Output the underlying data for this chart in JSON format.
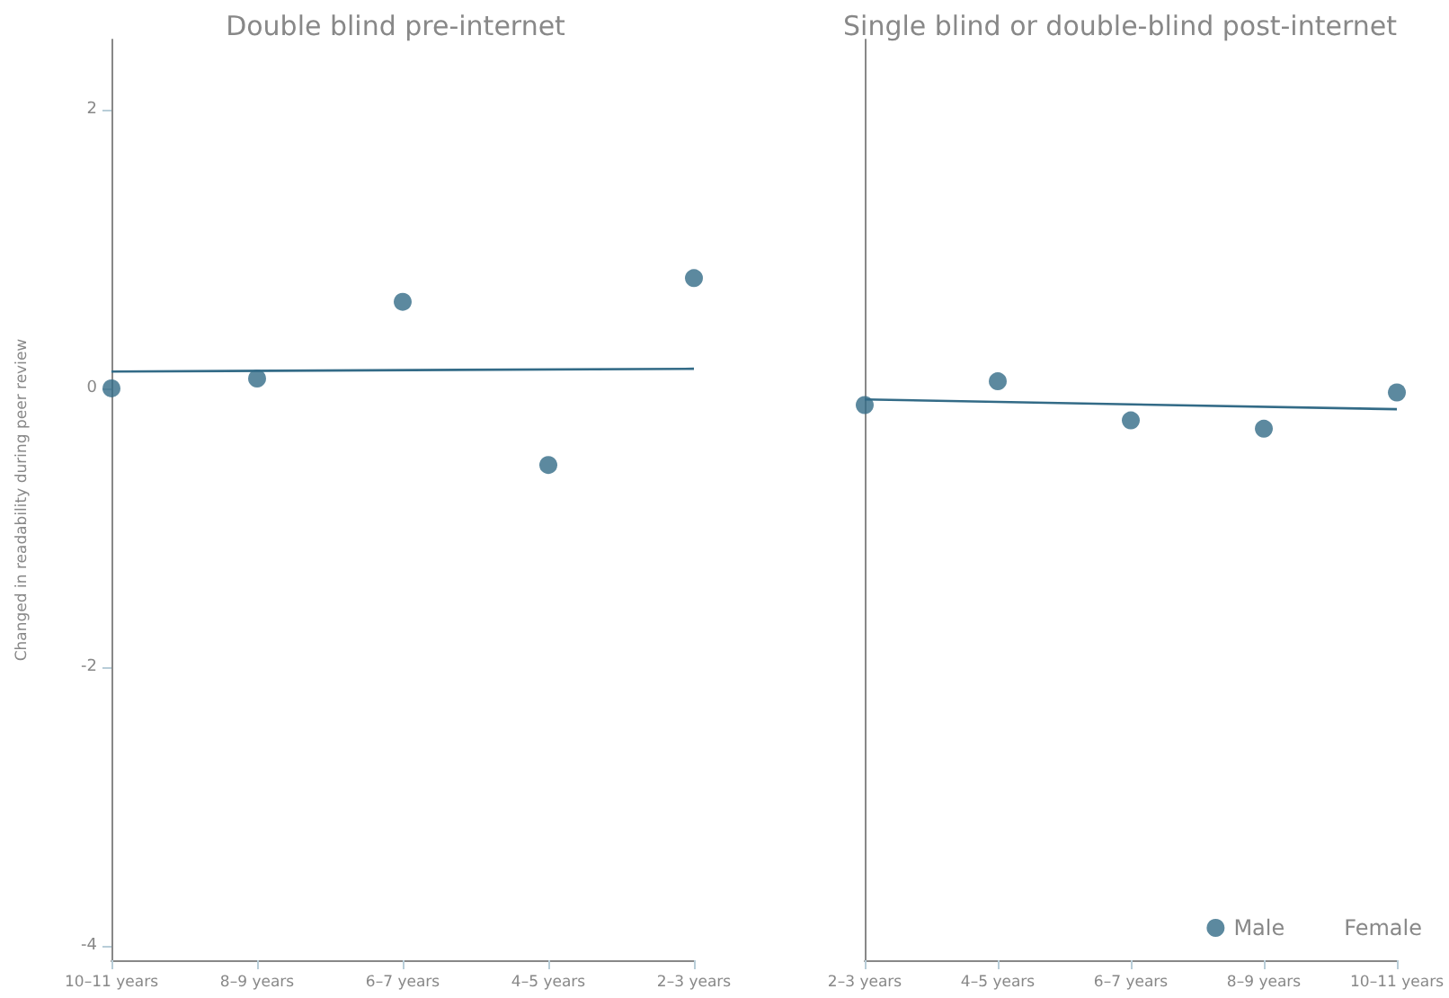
{
  "chart_data": [
    {
      "type": "scatter",
      "title": "Double blind pre-internet",
      "ylabel": "Changed in readability during peer review",
      "categories": [
        "10–11 years",
        "8–9 years",
        "6–7 years",
        "4–5 years",
        "2–3 years"
      ],
      "series": [
        {
          "color": "#336b87",
          "marker": "circle",
          "values": [
            0.0,
            0.07,
            0.62,
            -0.55,
            0.79
          ]
        },
        {
          "type": "line",
          "color": "#336b87",
          "marker": "none",
          "x": [
            "10–11 years",
            "2–3 years"
          ],
          "values": [
            0.12,
            0.14
          ]
        }
      ],
      "ylim": [
        -4.1,
        2.5
      ],
      "yticks": [
        -4,
        -2,
        0,
        2
      ],
      "grid": false,
      "legend": false
    },
    {
      "type": "scatter",
      "title": "Single blind or double-blind post-internet",
      "categories": [
        "2–3 years",
        "4–5 years",
        "6–7 years",
        "8–9 years",
        "10–11 years"
      ],
      "series": [
        {
          "name": "Male",
          "color": "#336b87",
          "marker": "circle",
          "values": [
            -0.12,
            0.05,
            -0.23,
            -0.29,
            -0.03
          ]
        },
        {
          "name": "Female",
          "marker": "none",
          "values": [
            null,
            null,
            null,
            null,
            null
          ]
        },
        {
          "type": "line",
          "color": "#336b87",
          "marker": "none",
          "x": [
            "2–3 years",
            "10–11 years"
          ],
          "values": [
            -0.08,
            -0.15
          ]
        }
      ],
      "ylim": [
        -4.1,
        2.5
      ],
      "yticks": [
        -4,
        -2,
        0,
        2
      ],
      "grid": false,
      "legend": "bottom right",
      "tick_labels": "x"
    }
  ]
}
